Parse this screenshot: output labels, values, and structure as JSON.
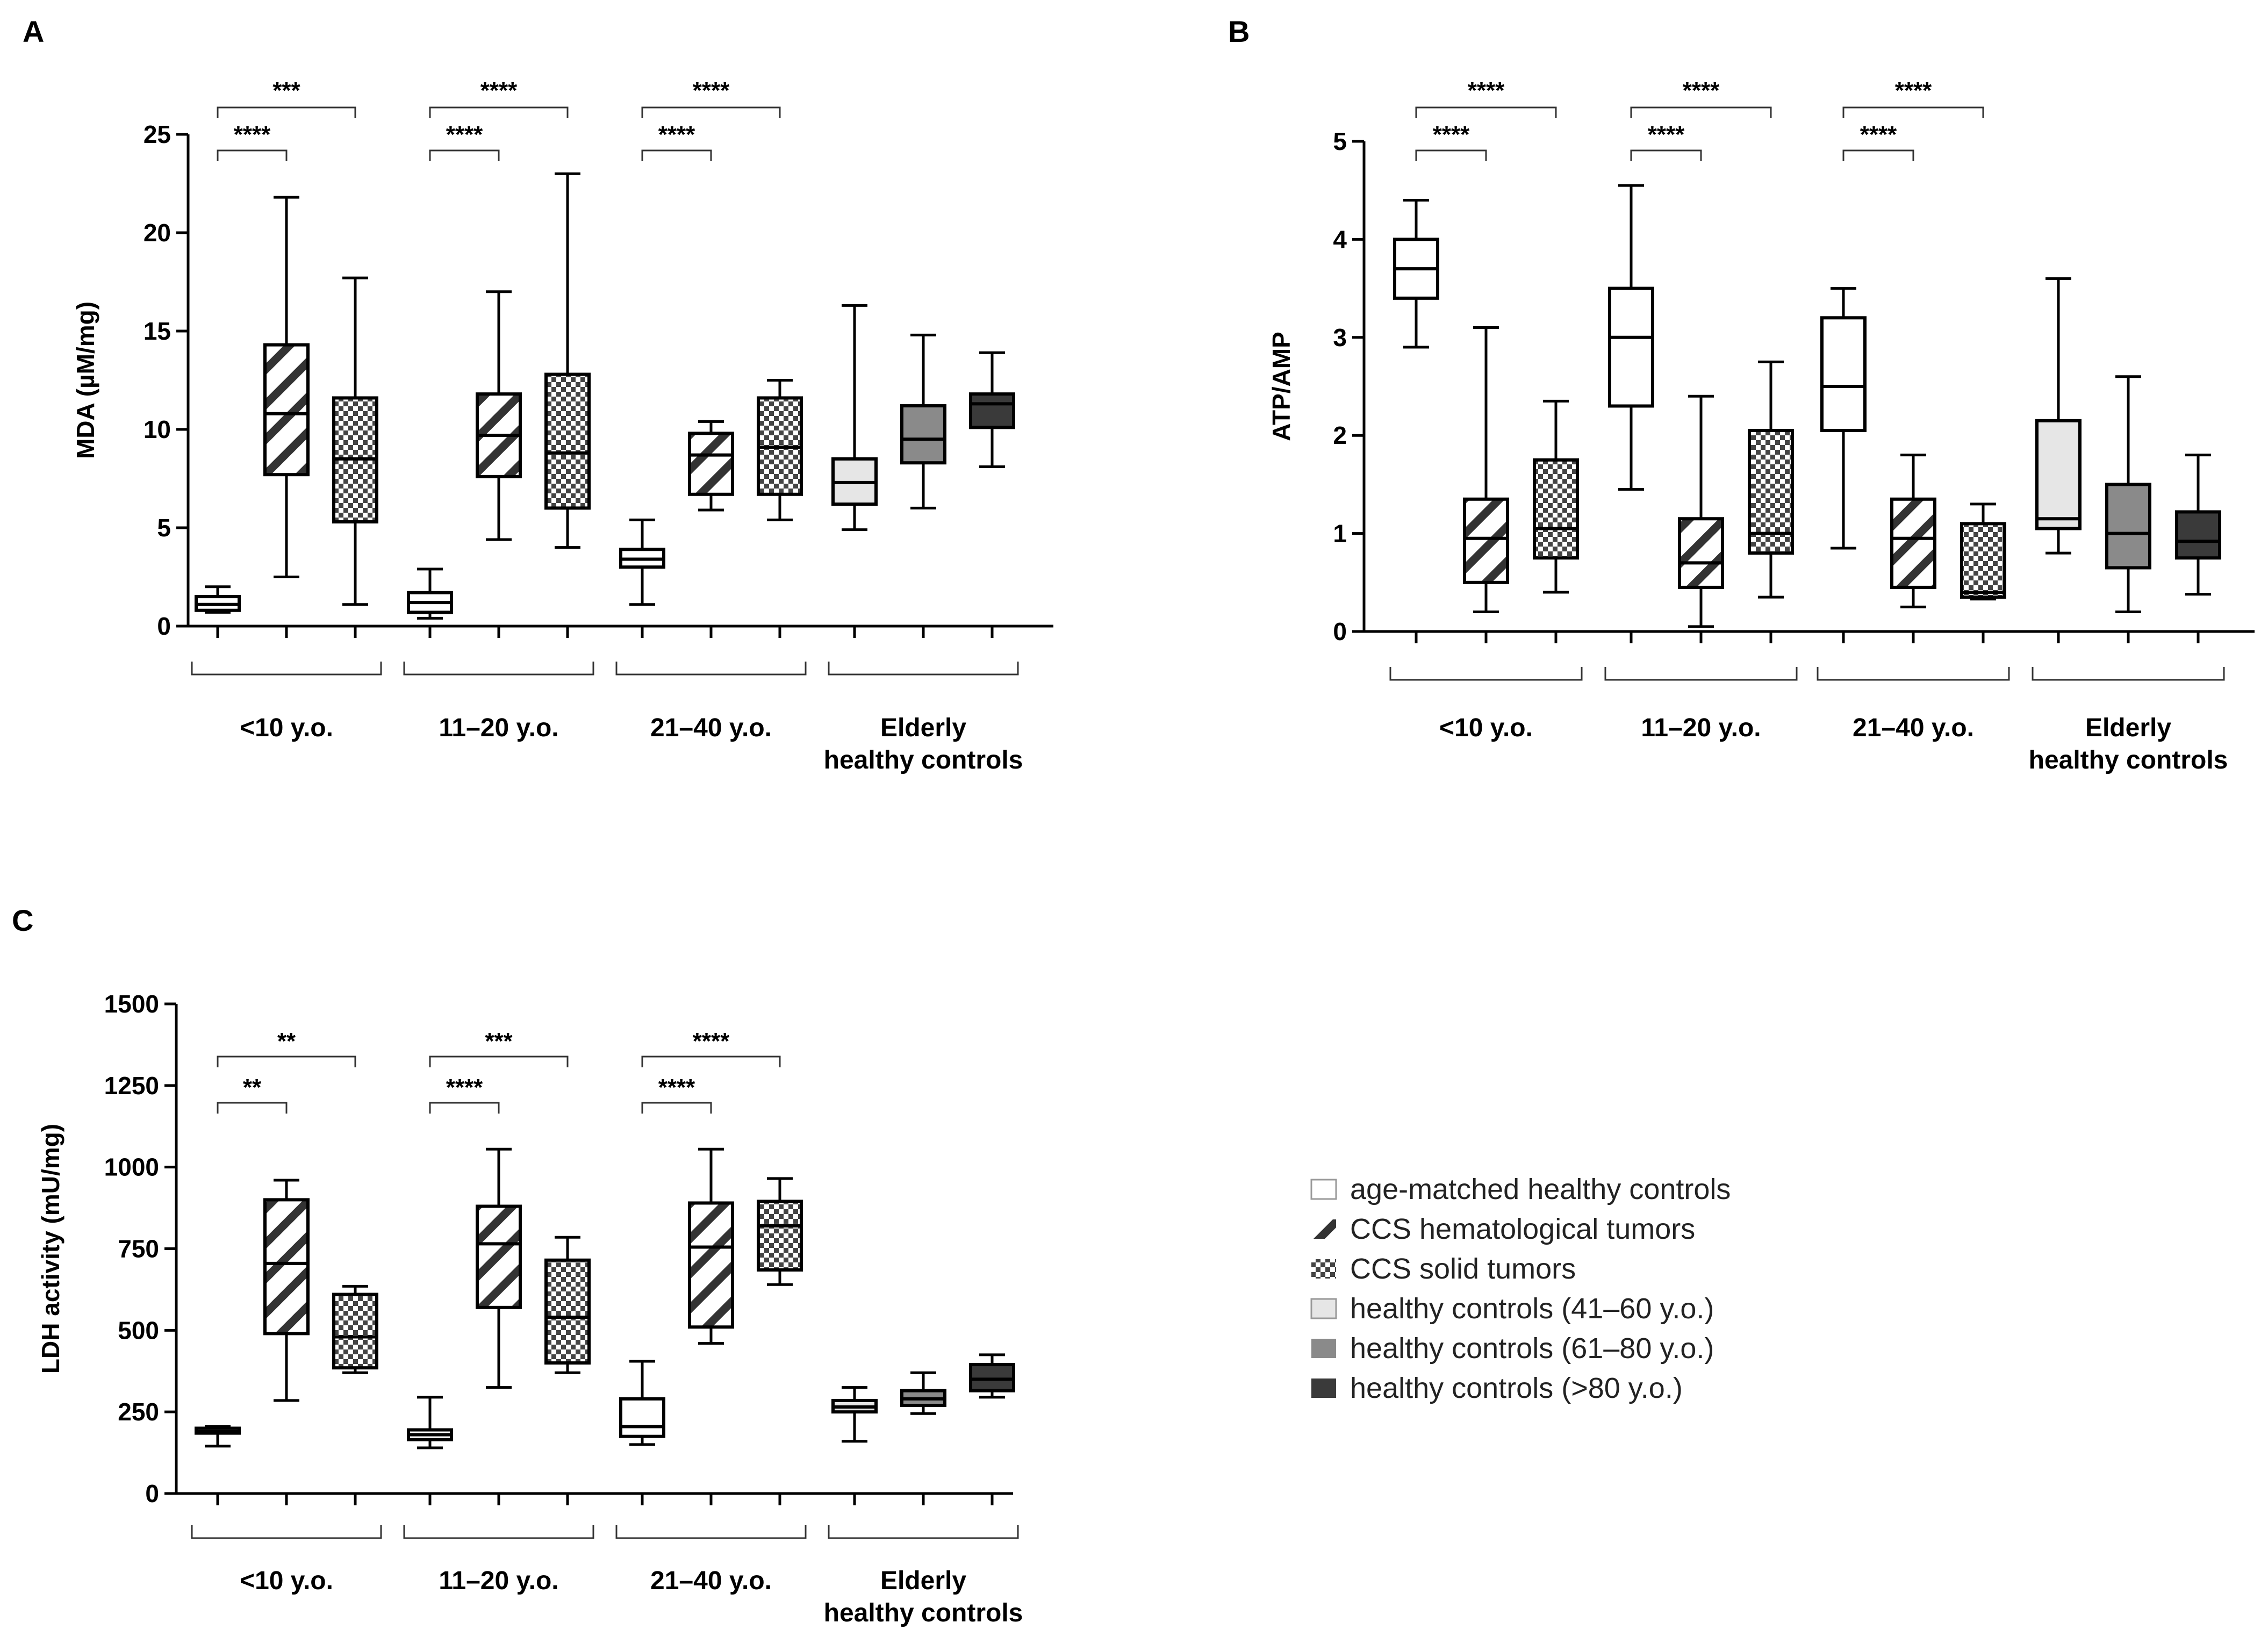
{
  "legend": [
    {
      "label": "age-matched healthy controls",
      "pattern": "white"
    },
    {
      "label": "CCS hematological tumors",
      "pattern": "hatch"
    },
    {
      "label": "CCS solid tumors",
      "pattern": "check"
    },
    {
      "label": "healthy controls (41–60 y.o.)",
      "pattern": "light"
    },
    {
      "label": "healthy controls (61–80 y.o.)",
      "pattern": "mid"
    },
    {
      "label": "healthy controls (>80 y.o.)",
      "pattern": "dark"
    }
  ],
  "colors": {
    "light": "#e6e6e6",
    "mid": "#8a8a8a",
    "dark": "#3a3a3a",
    "stroke": "#000000"
  },
  "chart_data": [
    {
      "panel": "A",
      "type": "box",
      "ylabel": "MDA (µM/mg)",
      "ylim": [
        0,
        25
      ],
      "yticks": [
        0,
        5,
        10,
        15,
        20,
        25
      ],
      "group_labels": [
        [
          "<10 y.o."
        ],
        [
          "11–20 y.o."
        ],
        [
          "21–40 y.o."
        ],
        [
          "Elderly",
          "healthy controls"
        ]
      ],
      "groups": [
        {
          "boxes": [
            {
              "pattern": "white",
              "min": 0.7,
              "q1": 0.8,
              "median": 1.1,
              "q3": 1.5,
              "max": 2.0
            },
            {
              "pattern": "hatch",
              "min": 2.5,
              "q1": 7.7,
              "median": 10.8,
              "q3": 14.3,
              "max": 21.8
            },
            {
              "pattern": "check",
              "min": 1.1,
              "q1": 5.3,
              "median": 8.5,
              "q3": 11.6,
              "max": 17.7
            }
          ]
        },
        {
          "boxes": [
            {
              "pattern": "white",
              "min": 0.4,
              "q1": 0.7,
              "median": 1.2,
              "q3": 1.7,
              "max": 2.9
            },
            {
              "pattern": "hatch",
              "min": 4.4,
              "q1": 7.6,
              "median": 9.7,
              "q3": 11.8,
              "max": 17.0
            },
            {
              "pattern": "check",
              "min": 4.0,
              "q1": 6.0,
              "median": 8.8,
              "q3": 12.8,
              "max": 23.0
            }
          ]
        },
        {
          "boxes": [
            {
              "pattern": "white",
              "min": 1.1,
              "q1": 3.0,
              "median": 3.4,
              "q3": 3.9,
              "max": 5.4
            },
            {
              "pattern": "hatch",
              "min": 5.9,
              "q1": 6.7,
              "median": 8.7,
              "q3": 9.8,
              "max": 10.4
            },
            {
              "pattern": "check",
              "min": 5.4,
              "q1": 6.7,
              "median": 9.1,
              "q3": 11.6,
              "max": 12.5
            }
          ]
        },
        {
          "boxes": [
            {
              "pattern": "light",
              "min": 4.9,
              "q1": 6.2,
              "median": 7.3,
              "q3": 8.5,
              "max": 16.3
            },
            {
              "pattern": "mid",
              "min": 6.0,
              "q1": 8.3,
              "median": 9.5,
              "q3": 11.2,
              "max": 14.8
            },
            {
              "pattern": "dark",
              "min": 8.1,
              "q1": 10.1,
              "median": 11.3,
              "q3": 11.8,
              "max": 13.9
            }
          ]
        }
      ],
      "significance": [
        {
          "group": 0,
          "to": 1,
          "label": "****",
          "level": 1
        },
        {
          "group": 0,
          "to": 2,
          "label": "***",
          "level": 2
        },
        {
          "group": 1,
          "to": 1,
          "label": "****",
          "level": 1
        },
        {
          "group": 1,
          "to": 2,
          "label": "****",
          "level": 2
        },
        {
          "group": 2,
          "to": 1,
          "label": "****",
          "level": 1
        },
        {
          "group": 2,
          "to": 2,
          "label": "****",
          "level": 2
        }
      ]
    },
    {
      "panel": "B",
      "type": "box",
      "ylabel": "ATP/AMP",
      "ylim": [
        0,
        5
      ],
      "yticks": [
        0,
        1,
        2,
        3,
        4,
        5
      ],
      "group_labels": [
        [
          "<10 y.o."
        ],
        [
          "11–20 y.o."
        ],
        [
          "21–40 y.o."
        ],
        [
          "Elderly",
          "healthy controls"
        ]
      ],
      "groups": [
        {
          "boxes": [
            {
              "pattern": "white",
              "min": 2.9,
              "q1": 3.4,
              "median": 3.7,
              "q3": 4.0,
              "max": 4.4
            },
            {
              "pattern": "hatch",
              "min": 0.2,
              "q1": 0.5,
              "median": 0.95,
              "q3": 1.35,
              "max": 3.1
            },
            {
              "pattern": "check",
              "min": 0.4,
              "q1": 0.75,
              "median": 1.05,
              "q3": 1.75,
              "max": 2.35
            }
          ]
        },
        {
          "boxes": [
            {
              "pattern": "white",
              "min": 1.45,
              "q1": 2.3,
              "median": 3.0,
              "q3": 3.5,
              "max": 4.55
            },
            {
              "pattern": "hatch",
              "min": 0.05,
              "q1": 0.45,
              "median": 0.7,
              "q3": 1.15,
              "max": 2.4
            },
            {
              "pattern": "check",
              "min": 0.35,
              "q1": 0.8,
              "median": 1.0,
              "q3": 2.05,
              "max": 2.75
            }
          ]
        },
        {
          "boxes": [
            {
              "pattern": "white",
              "min": 0.85,
              "q1": 2.05,
              "median": 2.5,
              "q3": 3.2,
              "max": 3.5
            },
            {
              "pattern": "hatch",
              "min": 0.25,
              "q1": 0.45,
              "median": 0.95,
              "q3": 1.35,
              "max": 1.8
            },
            {
              "pattern": "check",
              "min": 0.33,
              "q1": 0.35,
              "median": 0.4,
              "q3": 1.1,
              "max": 1.3
            }
          ]
        },
        {
          "boxes": [
            {
              "pattern": "light",
              "min": 0.8,
              "q1": 1.05,
              "median": 1.15,
              "q3": 2.15,
              "max": 3.6
            },
            {
              "pattern": "mid",
              "min": 0.2,
              "q1": 0.65,
              "median": 1.0,
              "q3": 1.5,
              "max": 2.6
            },
            {
              "pattern": "dark",
              "min": 0.38,
              "q1": 0.75,
              "median": 0.92,
              "q3": 1.22,
              "max": 1.8
            }
          ]
        }
      ],
      "significance": [
        {
          "group": 0,
          "to": 1,
          "label": "****",
          "level": 1
        },
        {
          "group": 0,
          "to": 2,
          "label": "****",
          "level": 2
        },
        {
          "group": 1,
          "to": 1,
          "label": "****",
          "level": 1
        },
        {
          "group": 1,
          "to": 2,
          "label": "****",
          "level": 2
        },
        {
          "group": 2,
          "to": 1,
          "label": "****",
          "level": 1
        },
        {
          "group": 2,
          "to": 2,
          "label": "****",
          "level": 2
        }
      ]
    },
    {
      "panel": "C",
      "type": "box",
      "ylabel": "LDH activity (mU/mg)",
      "ylim": [
        0,
        1500
      ],
      "yticks": [
        0,
        250,
        500,
        750,
        1000,
        1250,
        1500
      ],
      "group_labels": [
        [
          "<10 y.o."
        ],
        [
          "11–20 y.o."
        ],
        [
          "21–40 y.o."
        ],
        [
          "Elderly",
          "healthy controls"
        ]
      ],
      "groups": [
        {
          "boxes": [
            {
              "pattern": "white",
              "min": 145,
              "q1": 185,
              "median": 190,
              "q3": 200,
              "max": 205
            },
            {
              "pattern": "hatch",
              "min": 285,
              "q1": 490,
              "median": 705,
              "q3": 900,
              "max": 960
            },
            {
              "pattern": "check",
              "min": 370,
              "q1": 385,
              "median": 480,
              "q3": 610,
              "max": 635
            }
          ]
        },
        {
          "boxes": [
            {
              "pattern": "white",
              "min": 140,
              "q1": 165,
              "median": 180,
              "q3": 195,
              "max": 295
            },
            {
              "pattern": "hatch",
              "min": 325,
              "q1": 570,
              "median": 765,
              "q3": 880,
              "max": 1055
            },
            {
              "pattern": "check",
              "min": 370,
              "q1": 400,
              "median": 540,
              "q3": 715,
              "max": 785
            }
          ]
        },
        {
          "boxes": [
            {
              "pattern": "white",
              "min": 150,
              "q1": 175,
              "median": 205,
              "q3": 290,
              "max": 405
            },
            {
              "pattern": "hatch",
              "min": 460,
              "q1": 510,
              "median": 755,
              "q3": 890,
              "max": 1055
            },
            {
              "pattern": "check",
              "min": 640,
              "q1": 685,
              "median": 820,
              "q3": 895,
              "max": 965
            }
          ]
        },
        {
          "boxes": [
            {
              "pattern": "light",
              "min": 160,
              "q1": 250,
              "median": 265,
              "q3": 285,
              "max": 325
            },
            {
              "pattern": "mid",
              "min": 245,
              "q1": 270,
              "median": 290,
              "q3": 315,
              "max": 370
            },
            {
              "pattern": "dark",
              "min": 295,
              "q1": 315,
              "median": 350,
              "q3": 395,
              "max": 425
            }
          ]
        }
      ],
      "significance": [
        {
          "group": 0,
          "to": 1,
          "label": "**",
          "level": 1
        },
        {
          "group": 0,
          "to": 2,
          "label": "**",
          "level": 2
        },
        {
          "group": 1,
          "to": 1,
          "label": "****",
          "level": 1
        },
        {
          "group": 1,
          "to": 2,
          "label": "***",
          "level": 2
        },
        {
          "group": 2,
          "to": 1,
          "label": "****",
          "level": 1
        },
        {
          "group": 2,
          "to": 2,
          "label": "****",
          "level": 2
        }
      ]
    }
  ]
}
